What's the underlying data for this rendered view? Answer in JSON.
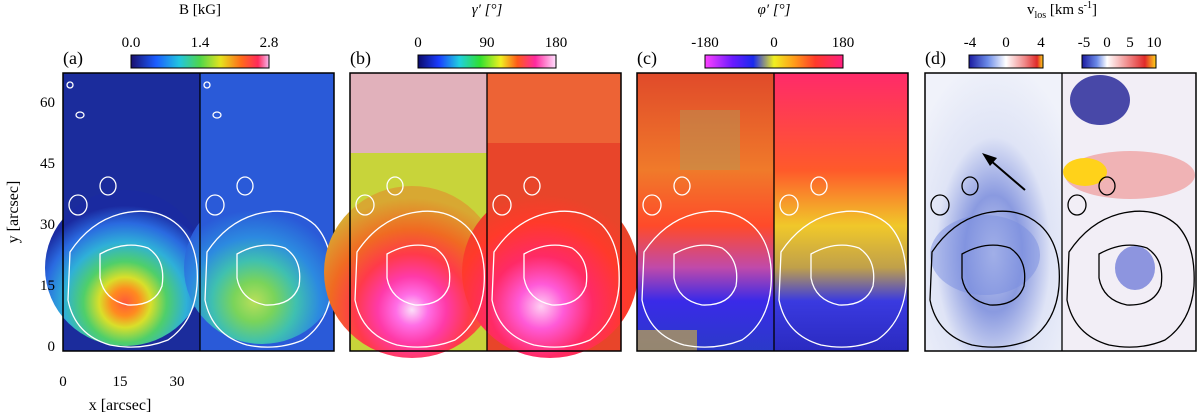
{
  "figure": {
    "ylabel": "y [arcsec]",
    "xlabel": "x [arcsec]",
    "x_ticks": [
      "0",
      "15",
      "30"
    ],
    "y_ticks": [
      "0",
      "15",
      "30",
      "45",
      "60"
    ],
    "panels": [
      {
        "letter": "(a)",
        "colorbars": [
          {
            "label": "B [kG]",
            "ticks": [
              "0.0",
              "1.4",
              "2.8"
            ]
          }
        ]
      },
      {
        "letter": "(b)",
        "colorbars": [
          {
            "label": "γ′ [°]",
            "ticks": [
              "0",
              "90",
              "180"
            ]
          }
        ]
      },
      {
        "letter": "(c)",
        "colorbars": [
          {
            "label": "φ′ [°]",
            "ticks": [
              "-180",
              "0",
              "180"
            ]
          }
        ]
      },
      {
        "letter": "(d)",
        "colorbars": [
          {
            "label": "v",
            "sub": "los",
            "unit": " [km s",
            "sup": "-1",
            "close": "]",
            "ticks": [
              "-4",
              "0",
              "4"
            ]
          },
          {
            "label": "",
            "ticks": [
              "-5",
              "0",
              "5",
              "10"
            ]
          }
        ]
      }
    ],
    "colors": {
      "panel_a": "#3f8fd0",
      "panel_b": "#d94a8a",
      "panel_c": "#e45a3a",
      "panel_d": "#eef2fb"
    }
  }
}
